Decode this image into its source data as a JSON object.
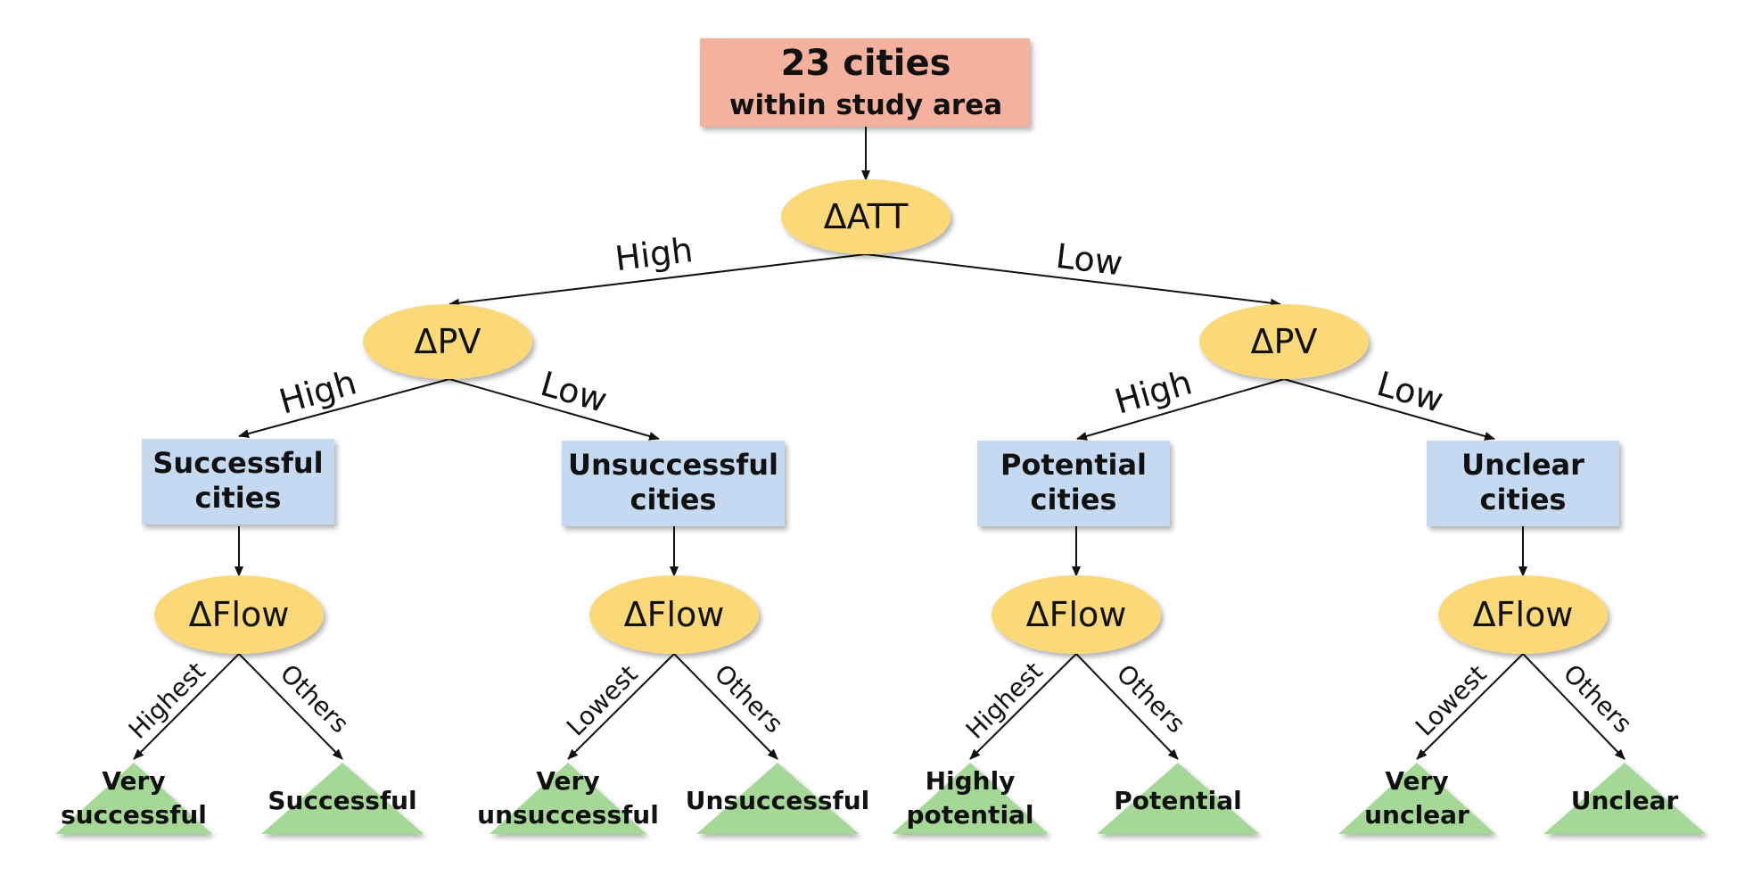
{
  "colors": {
    "root_fill": "#f4b19d",
    "decision_fill": "#fbd878",
    "category_fill": "#c5daf0",
    "outcome_fill": "#a5d897",
    "edge": "#111111"
  },
  "root": {
    "line1": "23 cities",
    "line2": "within study area"
  },
  "decisions": {
    "att": "ΔATT",
    "pv_left": "ΔPV",
    "pv_right": "ΔPV",
    "flow_successful": "ΔFlow",
    "flow_unsuccessful": "ΔFlow",
    "flow_potential": "ΔFlow",
    "flow_unclear": "ΔFlow"
  },
  "categories": {
    "successful": [
      "Successful",
      "cities"
    ],
    "unsuccessful": [
      "Unsuccessful",
      "cities"
    ],
    "potential": [
      "Potential",
      "cities"
    ],
    "unclear": [
      "Unclear",
      "cities"
    ]
  },
  "edge_labels": {
    "att_high": "High",
    "att_low": "Low",
    "pv_left_high": "High",
    "pv_left_low": "Low",
    "pv_right_high": "High",
    "pv_right_low": "Low",
    "successful_highest": "Highest",
    "successful_others": "Others",
    "unsuccessful_lowest": "Lowest",
    "unsuccessful_others": "Others",
    "potential_highest": "Highest",
    "potential_others": "Others",
    "unclear_lowest": "Lowest",
    "unclear_others": "Others"
  },
  "outcomes": {
    "very_successful": [
      "Very",
      "successful"
    ],
    "successful": [
      "Successful"
    ],
    "very_unsuccessful": [
      "Very",
      "unsuccessful"
    ],
    "unsuccessful": [
      "Unsuccessful"
    ],
    "highly_potential": [
      "Highly",
      "potential"
    ],
    "potential": [
      "Potential"
    ],
    "very_unclear": [
      "Very",
      "unclear"
    ],
    "unclear": [
      "Unclear"
    ]
  }
}
